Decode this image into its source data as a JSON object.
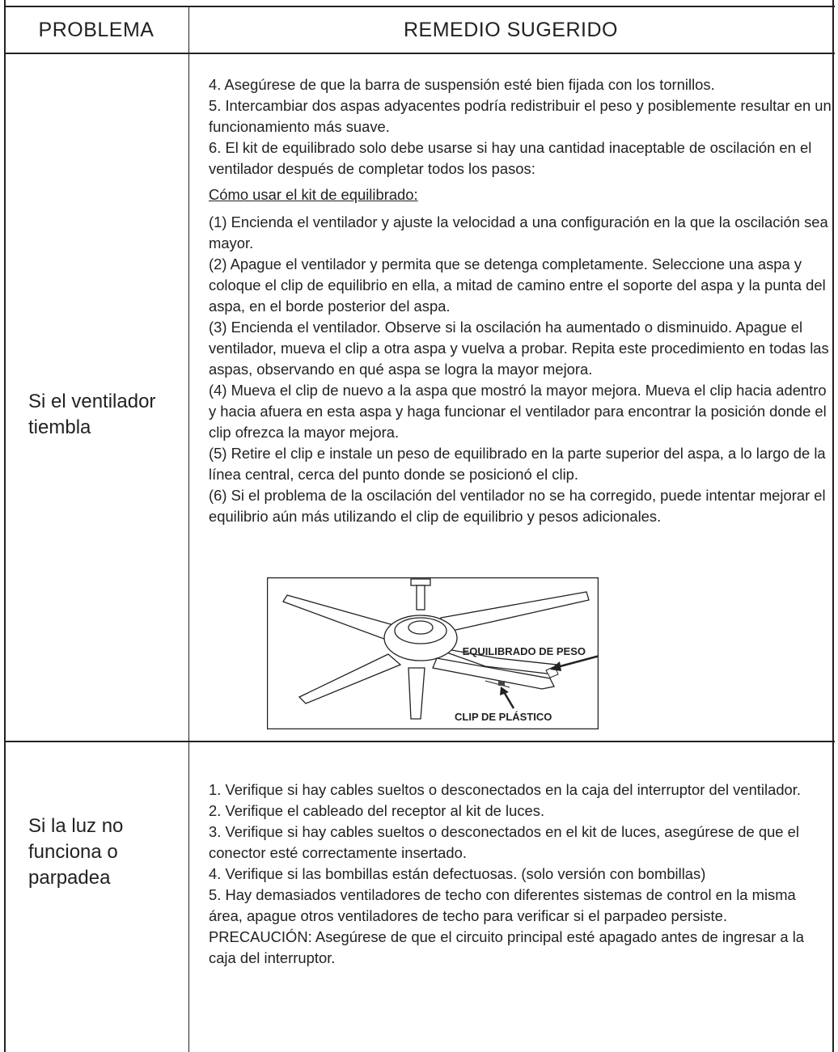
{
  "table": {
    "headers": [
      "PROBLEMA",
      "REMEDIO SUGERIDO"
    ],
    "rows": [
      {
        "problem": "Si el ventilador tiembla",
        "remedy": [
          "4. Asegúrese de que la barra de suspensión esté bien fijada con los tornillos.",
          "5. Intercambiar dos aspas adyacentes podría redistribuir el peso y posiblemente resultar en un funcionamiento más suave.",
          "6. El kit de equilibrado solo debe usarse si hay una cantidad inaceptable de oscilación en el ventilador después de completar todos los pasos:"
        ],
        "subheading": "Cómo usar el kit de equilibrado:",
        "steps": [
          "(1)  Encienda el ventilador y ajuste la velocidad a una configuración en la que la oscilación sea mayor.",
          "(2) Apague el ventilador y permita que se detenga completamente. Seleccione una aspa y coloque el clip de equilibrio en ella, a mitad de camino entre el soporte del aspa y la punta del aspa, en el borde posterior del aspa.",
          "(3)  Encienda el ventilador. Observe si la oscilación ha aumentado o disminuido. Apague el ventilador, mueva el clip a otra aspa y vuelva a probar. Repita este procedimiento en todas las aspas, observando en qué aspa se logra la mayor mejora.",
          "(4) Mueva el clip de nuevo a la aspa que mostró la mayor mejora. Mueva el clip hacia adentro y hacia afuera en esta aspa y haga funcionar el ventilador para encontrar la posición donde el clip ofrezca la mayor mejora.",
          "(5)  Retire el clip e instale un peso de equilibrado en la parte superior del aspa, a lo largo de la línea central, cerca del punto donde se posicionó el clip.",
          "(6) Si el problema de la oscilación del ventilador no se ha corregido, puede intentar mejorar el equilibrio aún más utilizando el clip de equilibrio y pesos adicionales."
        ],
        "figure": {
          "labels": [
            "EQUILIBRADO DE PESO",
            "CLIP DE PLÁSTICO"
          ]
        }
      },
      {
        "problem": "Si la luz no funciona o parpadea",
        "remedy": [
          "1. Verifique si hay cables sueltos o desconectados en la caja del interruptor del ventilador.",
          "2. Verifique el cableado del receptor al kit de luces.",
          "3. Verifique si hay cables sueltos o desconectados en el kit de luces, asegúrese de que el conector esté correctamente insertado.",
          "4. Verifique si las bombillas están defectuosas. (solo versión con bombillas)",
          "5. Hay demasiados ventiladores de techo con diferentes sistemas de control en la misma área, apague otros ventiladores de techo para verificar si el parpadeo persiste.",
          "PRECAUCIÓN: Asegúrese de que el circuito principal esté apagado antes de ingresar a la caja del interruptor."
        ]
      }
    ]
  }
}
